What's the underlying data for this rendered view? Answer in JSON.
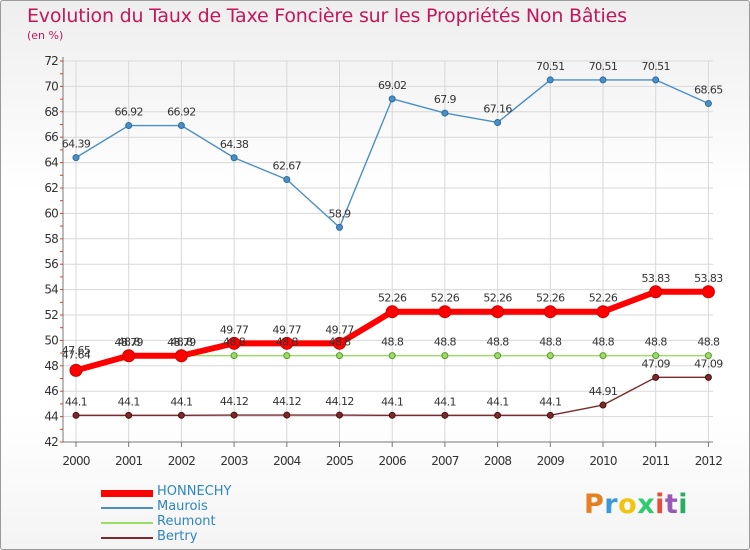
{
  "title": "Evolution du Taux de Taxe Foncière sur les Propriétés Non Bâties",
  "unit": "(en %)",
  "logo": "Proxiti",
  "colors": {
    "title": "#c2185b",
    "grid": "#d8d8d8",
    "axis_ticks": "#e53935",
    "HONNECHY": "#ff0000",
    "Maurois": "#4a8fc6",
    "Reumont": "#99dd66",
    "Bertry": "#7a2a2a"
  },
  "chart_data": {
    "type": "line",
    "title": "Evolution du Taux de Taxe Foncière sur les Propriétés Non Bâties",
    "ylabel": "(en %)",
    "xlabel": "",
    "categories": [
      "2000",
      "2001",
      "2002",
      "2003",
      "2004",
      "2005",
      "2006",
      "2007",
      "2008",
      "2009",
      "2010",
      "2011",
      "2012"
    ],
    "ylim": [
      42,
      72
    ],
    "yticks": [
      42,
      44,
      46,
      48,
      50,
      52,
      54,
      56,
      58,
      60,
      62,
      64,
      66,
      68,
      70,
      72
    ],
    "grid": true,
    "legend_position": "bottom-left",
    "series": [
      {
        "name": "HONNECHY",
        "values": [
          47.64,
          48.79,
          48.79,
          49.77,
          49.77,
          49.77,
          52.26,
          52.26,
          52.26,
          52.26,
          52.26,
          53.83,
          53.83
        ],
        "labels": [
          "47.64",
          "48.79",
          "48.79",
          "49.77",
          "49.77",
          "49.77",
          "52.26",
          "52.26",
          "52.26",
          "52.26",
          "52.26",
          "53.83",
          "53.83"
        ]
      },
      {
        "name": "Maurois",
        "values": [
          64.39,
          66.92,
          66.92,
          64.38,
          62.67,
          58.9,
          69.02,
          67.9,
          67.16,
          70.51,
          70.51,
          70.51,
          68.65
        ],
        "labels": [
          "64.39",
          "66.92",
          "66.92",
          "64.38",
          "62.67",
          "58.9",
          "69.02",
          "67.9",
          "67.16",
          "70.51",
          "70.51",
          "70.51",
          "68.65"
        ]
      },
      {
        "name": "Reumont",
        "values": [
          47.65,
          48.8,
          48.8,
          48.8,
          48.8,
          48.8,
          48.8,
          48.8,
          48.8,
          48.8,
          48.8,
          48.8,
          48.8
        ],
        "labels": [
          "47.65",
          "48.8",
          "48.8",
          "48.8",
          "48.8",
          "48.8",
          "48.8",
          "48.8",
          "48.8",
          "48.8",
          "48.8",
          "48.8",
          "48.8"
        ]
      },
      {
        "name": "Bertry",
        "values": [
          44.1,
          44.1,
          44.1,
          44.12,
          44.12,
          44.12,
          44.1,
          44.1,
          44.1,
          44.1,
          44.91,
          47.09,
          47.09
        ],
        "labels": [
          "44.1",
          "44.1",
          "44.1",
          "44.12",
          "44.12",
          "44.12",
          "44.1",
          "44.1",
          "44.1",
          "44.1",
          "44.91",
          "47.09",
          "47.09"
        ]
      }
    ]
  }
}
